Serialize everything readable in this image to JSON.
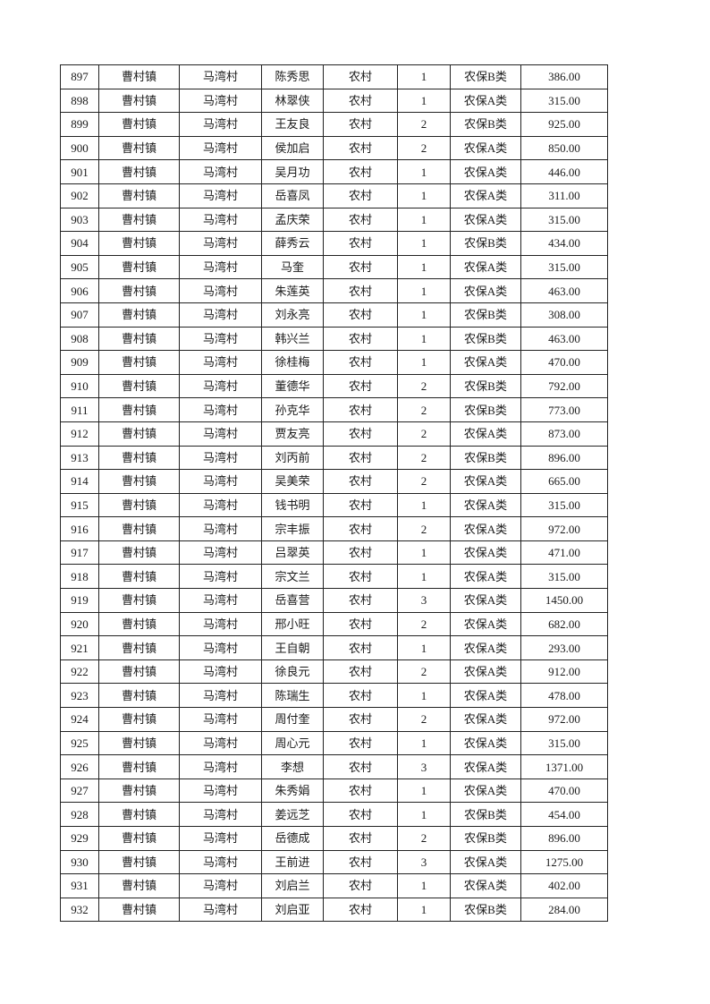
{
  "table": {
    "rows": [
      [
        "897",
        "曹村镇",
        "马湾村",
        "陈秀思",
        "农村",
        "1",
        "农保B类",
        "386.00"
      ],
      [
        "898",
        "曹村镇",
        "马湾村",
        "林翠侠",
        "农村",
        "1",
        "农保A类",
        "315.00"
      ],
      [
        "899",
        "曹村镇",
        "马湾村",
        "王友良",
        "农村",
        "2",
        "农保B类",
        "925.00"
      ],
      [
        "900",
        "曹村镇",
        "马湾村",
        "侯加启",
        "农村",
        "2",
        "农保A类",
        "850.00"
      ],
      [
        "901",
        "曹村镇",
        "马湾村",
        "吴月功",
        "农村",
        "1",
        "农保A类",
        "446.00"
      ],
      [
        "902",
        "曹村镇",
        "马湾村",
        "岳喜凤",
        "农村",
        "1",
        "农保A类",
        "311.00"
      ],
      [
        "903",
        "曹村镇",
        "马湾村",
        "孟庆荣",
        "农村",
        "1",
        "农保A类",
        "315.00"
      ],
      [
        "904",
        "曹村镇",
        "马湾村",
        "薛秀云",
        "农村",
        "1",
        "农保B类",
        "434.00"
      ],
      [
        "905",
        "曹村镇",
        "马湾村",
        "马奎",
        "农村",
        "1",
        "农保A类",
        "315.00"
      ],
      [
        "906",
        "曹村镇",
        "马湾村",
        "朱莲英",
        "农村",
        "1",
        "农保A类",
        "463.00"
      ],
      [
        "907",
        "曹村镇",
        "马湾村",
        "刘永亮",
        "农村",
        "1",
        "农保B类",
        "308.00"
      ],
      [
        "908",
        "曹村镇",
        "马湾村",
        "韩兴兰",
        "农村",
        "1",
        "农保B类",
        "463.00"
      ],
      [
        "909",
        "曹村镇",
        "马湾村",
        "徐桂梅",
        "农村",
        "1",
        "农保A类",
        "470.00"
      ],
      [
        "910",
        "曹村镇",
        "马湾村",
        "董德华",
        "农村",
        "2",
        "农保B类",
        "792.00"
      ],
      [
        "911",
        "曹村镇",
        "马湾村",
        "孙克华",
        "农村",
        "2",
        "农保B类",
        "773.00"
      ],
      [
        "912",
        "曹村镇",
        "马湾村",
        "贾友亮",
        "农村",
        "2",
        "农保A类",
        "873.00"
      ],
      [
        "913",
        "曹村镇",
        "马湾村",
        "刘丙前",
        "农村",
        "2",
        "农保B类",
        "896.00"
      ],
      [
        "914",
        "曹村镇",
        "马湾村",
        "吴美荣",
        "农村",
        "2",
        "农保A类",
        "665.00"
      ],
      [
        "915",
        "曹村镇",
        "马湾村",
        "钱书明",
        "农村",
        "1",
        "农保A类",
        "315.00"
      ],
      [
        "916",
        "曹村镇",
        "马湾村",
        "宗丰振",
        "农村",
        "2",
        "农保A类",
        "972.00"
      ],
      [
        "917",
        "曹村镇",
        "马湾村",
        "吕翠英",
        "农村",
        "1",
        "农保A类",
        "471.00"
      ],
      [
        "918",
        "曹村镇",
        "马湾村",
        "宗文兰",
        "农村",
        "1",
        "农保A类",
        "315.00"
      ],
      [
        "919",
        "曹村镇",
        "马湾村",
        "岳喜营",
        "农村",
        "3",
        "农保A类",
        "1450.00"
      ],
      [
        "920",
        "曹村镇",
        "马湾村",
        "邢小旺",
        "农村",
        "2",
        "农保A类",
        "682.00"
      ],
      [
        "921",
        "曹村镇",
        "马湾村",
        "王自朝",
        "农村",
        "1",
        "农保A类",
        "293.00"
      ],
      [
        "922",
        "曹村镇",
        "马湾村",
        "徐良元",
        "农村",
        "2",
        "农保A类",
        "912.00"
      ],
      [
        "923",
        "曹村镇",
        "马湾村",
        "陈瑞生",
        "农村",
        "1",
        "农保A类",
        "478.00"
      ],
      [
        "924",
        "曹村镇",
        "马湾村",
        "周付奎",
        "农村",
        "2",
        "农保A类",
        "972.00"
      ],
      [
        "925",
        "曹村镇",
        "马湾村",
        "周心元",
        "农村",
        "1",
        "农保A类",
        "315.00"
      ],
      [
        "926",
        "曹村镇",
        "马湾村",
        "李想",
        "农村",
        "3",
        "农保A类",
        "1371.00"
      ],
      [
        "927",
        "曹村镇",
        "马湾村",
        "朱秀娟",
        "农村",
        "1",
        "农保A类",
        "470.00"
      ],
      [
        "928",
        "曹村镇",
        "马湾村",
        "姜远芝",
        "农村",
        "1",
        "农保B类",
        "454.00"
      ],
      [
        "929",
        "曹村镇",
        "马湾村",
        "岳德成",
        "农村",
        "2",
        "农保B类",
        "896.00"
      ],
      [
        "930",
        "曹村镇",
        "马湾村",
        "王前进",
        "农村",
        "3",
        "农保A类",
        "1275.00"
      ],
      [
        "931",
        "曹村镇",
        "马湾村",
        "刘启兰",
        "农村",
        "1",
        "农保A类",
        "402.00"
      ],
      [
        "932",
        "曹村镇",
        "马湾村",
        "刘启亚",
        "农村",
        "1",
        "农保B类",
        "284.00"
      ]
    ]
  }
}
